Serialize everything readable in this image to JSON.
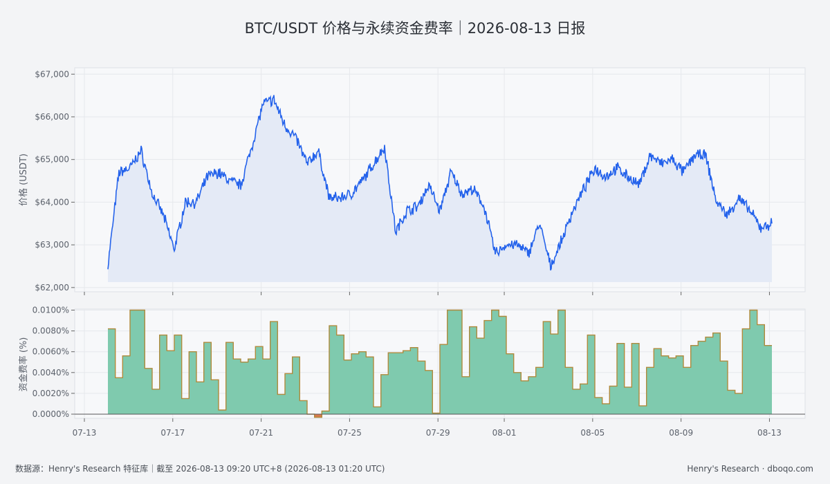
{
  "chart_data": [
    {
      "type": "line",
      "title": "BTC/USDT 价格与永续资金费率｜2026-08-13 日报",
      "ylabel": "价格 (USDT)",
      "ylim": [
        61900,
        67150
      ],
      "yticks": [
        "$62,000",
        "$63,000",
        "$64,000",
        "$65,000",
        "$66,000",
        "$67,000"
      ],
      "ytick_values": [
        62000,
        63000,
        64000,
        65000,
        66000,
        67000
      ],
      "series_color": "#2563eb",
      "fill_color": "#e4eaf6",
      "grid": true,
      "x": [
        "07-14",
        "07-14 12h",
        "07-15",
        "07-15 12h",
        "07-16",
        "07-16 12h",
        "07-17",
        "07-17 12h",
        "07-18",
        "07-18 12h",
        "07-19",
        "07-19 12h",
        "07-20",
        "07-20 12h",
        "07-21",
        "07-21 12h",
        "07-22",
        "07-22 12h",
        "07-23",
        "07-23 12h",
        "07-24",
        "07-24 12h",
        "07-25",
        "07-25 12h",
        "07-26",
        "07-26 12h",
        "07-27",
        "07-27 12h",
        "07-28",
        "07-28 12h",
        "07-29",
        "07-29 12h",
        "07-30",
        "07-30 12h",
        "07-31",
        "07-31 12h",
        "08-01",
        "08-01 12h",
        "08-02",
        "08-02 12h",
        "08-03",
        "08-03 12h",
        "08-04",
        "08-04 12h",
        "08-05",
        "08-05 12h",
        "08-06",
        "08-06 12h",
        "08-07",
        "08-07 12h",
        "08-08",
        "08-08 12h",
        "08-09",
        "08-09 12h",
        "08-10",
        "08-10 12h",
        "08-11",
        "08-11 12h",
        "08-12",
        "08-12 12h",
        "08-13"
      ],
      "values": [
        62500,
        64700,
        64800,
        65200,
        64200,
        63700,
        62900,
        64000,
        64000,
        64600,
        64700,
        64500,
        64400,
        65300,
        66300,
        66400,
        65800,
        65500,
        64900,
        65200,
        64100,
        64100,
        64200,
        64500,
        64900,
        65300,
        63300,
        63800,
        63900,
        64400,
        63800,
        64700,
        64200,
        64300,
        63900,
        62800,
        63000,
        63000,
        62800,
        63500,
        62500,
        63100,
        63800,
        64300,
        64800,
        64600,
        64800,
        64600,
        64400,
        65100,
        64900,
        65000,
        64700,
        65100,
        65100,
        64000,
        63700,
        64100,
        63800,
        63400,
        63500
      ]
    },
    {
      "type": "area",
      "ylabel": "资金费率 (%)",
      "ylim": [
        -0.0004,
        0.0101
      ],
      "yticks": [
        "0.0000%",
        "0.0020%",
        "0.0040%",
        "0.0060%",
        "0.0080%",
        "0.0100%"
      ],
      "ytick_values": [
        0,
        0.002,
        0.004,
        0.006,
        0.008,
        0.01
      ],
      "fill_color": "#7fcaae",
      "edge_color": "#b08a3c",
      "negative_color": "#d97a4f",
      "x_start": "07-14",
      "interval_hours": 8,
      "values": [
        0.0082,
        0.0035,
        0.0056,
        0.01,
        0.01,
        0.0044,
        0.0024,
        0.0076,
        0.0061,
        0.0076,
        0.0015,
        0.006,
        0.0031,
        0.0069,
        0.0033,
        0.0004,
        0.0069,
        0.0053,
        0.005,
        0.0053,
        0.0065,
        0.0053,
        0.0089,
        0.0019,
        0.0039,
        0.0055,
        0.0013,
        0.0,
        -0.0003,
        0.0003,
        0.0085,
        0.0076,
        0.0052,
        0.0058,
        0.006,
        0.0055,
        0.0007,
        0.0038,
        0.0059,
        0.0059,
        0.0061,
        0.0064,
        0.0051,
        0.0042,
        0.0001,
        0.0067,
        0.01,
        0.01,
        0.0036,
        0.0084,
        0.0073,
        0.009,
        0.01,
        0.0094,
        0.0058,
        0.004,
        0.0032,
        0.0036,
        0.0045,
        0.0089,
        0.0077,
        0.01,
        0.0045,
        0.0024,
        0.0029,
        0.0076,
        0.0016,
        0.001,
        0.0027,
        0.0068,
        0.0026,
        0.0068,
        0.0008,
        0.0045,
        0.0063,
        0.0056,
        0.0054,
        0.0056,
        0.0045,
        0.0066,
        0.007,
        0.0074,
        0.0078,
        0.0051,
        0.0023,
        0.002,
        0.0082,
        0.01,
        0.0086,
        0.0066
      ]
    }
  ],
  "x_axis": {
    "start": "07-13",
    "ticks": [
      "07-13",
      "07-17",
      "07-21",
      "07-25",
      "07-29",
      "08-01",
      "08-05",
      "08-09",
      "08-13"
    ],
    "tick_day_offsets": [
      0,
      4,
      8,
      12,
      16,
      19,
      23,
      27,
      31
    ]
  },
  "footer": {
    "left": "数据源：Henry's Research 特征库｜截至 2026-08-13 09:20 UTC+8 (2026-08-13 01:20 UTC)",
    "right": "Henry's Research · dboqo.com"
  }
}
